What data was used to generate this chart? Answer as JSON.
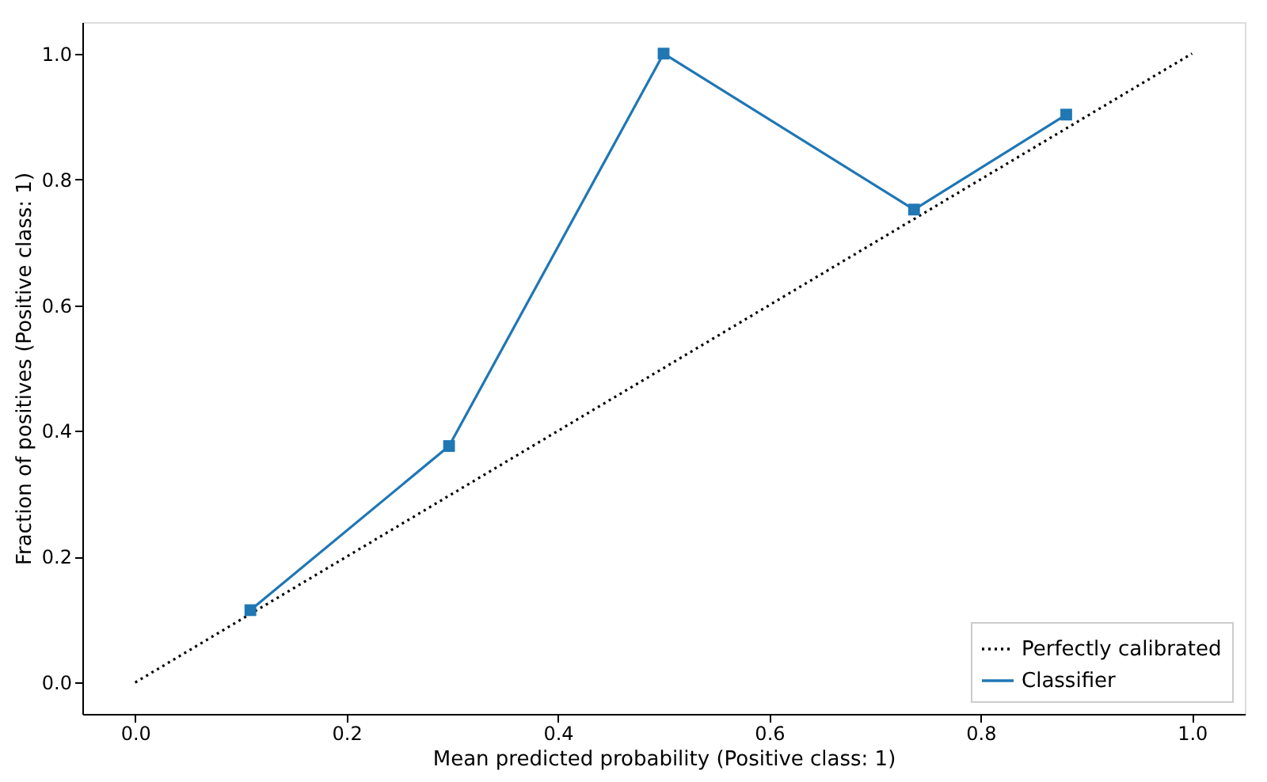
{
  "chart_data": {
    "type": "line",
    "xlabel": "Mean predicted probability (Positive class: 1)",
    "ylabel": "Fraction of positives (Positive class: 1)",
    "xlim": [
      -0.05,
      1.05
    ],
    "ylim": [
      -0.05,
      1.05
    ],
    "xticks": [
      {
        "value": 0,
        "label": "0.0"
      },
      {
        "value": 0.2,
        "label": "0.2"
      },
      {
        "value": 0.4,
        "label": "0.4"
      },
      {
        "value": 0.6,
        "label": "0.6"
      },
      {
        "value": 0.8,
        "label": "0.8"
      },
      {
        "value": 1,
        "label": "1.0"
      }
    ],
    "yticks": [
      {
        "value": 0,
        "label": "0.0"
      },
      {
        "value": 0.2,
        "label": "0.2"
      },
      {
        "value": 0.4,
        "label": "0.4"
      },
      {
        "value": 0.6,
        "label": "0.6"
      },
      {
        "value": 0.8,
        "label": "0.8"
      },
      {
        "value": 1,
        "label": "1.0"
      }
    ],
    "grid": false,
    "legend": "bottom right",
    "series": [
      {
        "name": "Perfectly calibrated",
        "color": "#000000",
        "x": [
          0,
          1
        ],
        "values": [
          0,
          1
        ],
        "line_style": "dotted",
        "marker": "none"
      },
      {
        "name": "Classifier",
        "color": "#1f77b4",
        "x": [
          0.109,
          0.297,
          0.5,
          0.737,
          0.881
        ],
        "values": [
          0.115,
          0.376,
          1.0,
          0.752,
          0.903
        ],
        "line_style": "solid",
        "marker": "square"
      }
    ]
  }
}
